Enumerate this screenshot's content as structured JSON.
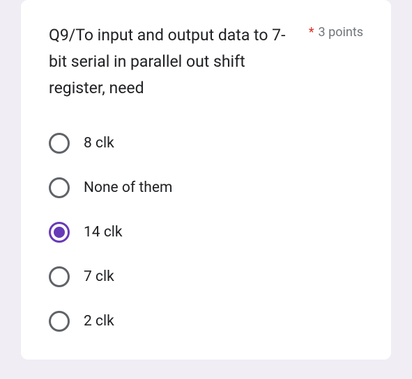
{
  "card": {
    "question_text": "Q9/To input  and output data to 7-bit serial in parallel out shift register, need",
    "required_mark": "*",
    "points_label": "3 points",
    "options": [
      {
        "label": "8 clk",
        "selected": false
      },
      {
        "label": "None of them",
        "selected": false
      },
      {
        "label": "14 clk",
        "selected": true
      },
      {
        "label": "7 clk",
        "selected": false
      },
      {
        "label": "2 clk",
        "selected": false
      }
    ],
    "colors": {
      "page_background": "#f0edf5",
      "card_background": "#ffffff",
      "text": "#202124",
      "muted_text": "#70757a",
      "required": "#d93025",
      "radio_border": "#5f6368",
      "accent": "#673ab7"
    }
  }
}
